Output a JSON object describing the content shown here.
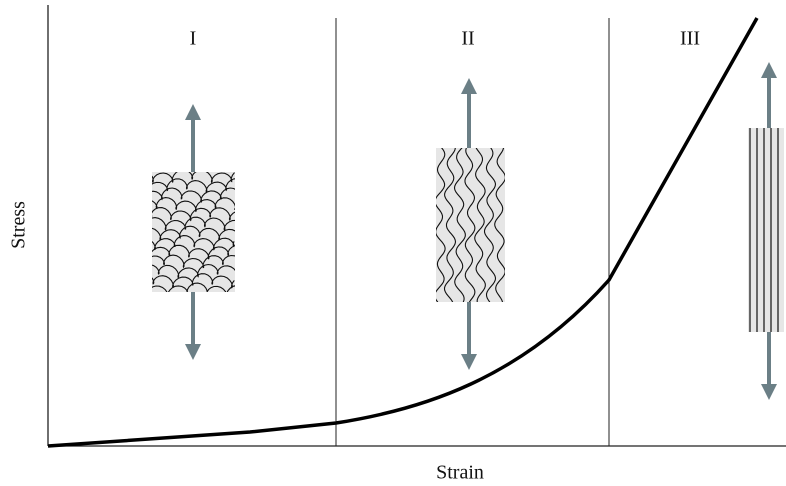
{
  "regions": [
    {
      "label": "I"
    },
    {
      "label": "II"
    },
    {
      "label": "III"
    }
  ],
  "axes": {
    "y_label": "Stress",
    "x_label": "Strain"
  }
}
